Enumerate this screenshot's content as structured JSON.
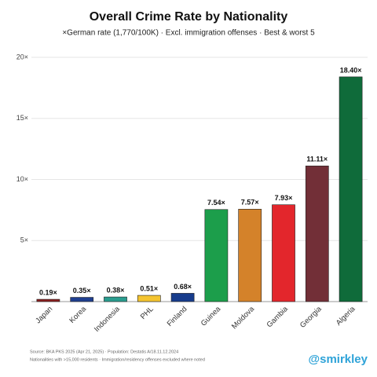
{
  "chart_data": {
    "type": "bar",
    "title": "Overall Crime Rate by Nationality",
    "subtitle": "×German rate (1,770/100K) · Excl. immigration offenses · Best & worst 5",
    "categories": [
      "Japan",
      "Korea",
      "Indonesia",
      "PHL",
      "Finland",
      "Guinea",
      "Moldova",
      "Gambia",
      "Georgia",
      "Algeria"
    ],
    "values": [
      0.19,
      0.35,
      0.38,
      0.51,
      0.68,
      7.54,
      7.57,
      7.93,
      11.11,
      18.4
    ],
    "value_labels": [
      "0.19×",
      "0.35×",
      "0.38×",
      "0.51×",
      "0.68×",
      "7.54×",
      "7.57×",
      "7.93×",
      "11.11×",
      "18.40×"
    ],
    "colors": [
      "#8b1f1f",
      "#1f3f8f",
      "#2a9d8f",
      "#f4c430",
      "#173c8c",
      "#1c9e4b",
      "#d4822a",
      "#e3262c",
      "#722f37",
      "#0f6b3a"
    ],
    "ylim": [
      0,
      20
    ],
    "yticks": [
      {
        "value": 5,
        "label": "5×"
      },
      {
        "value": 10,
        "label": "10×"
      },
      {
        "value": 15,
        "label": "15×"
      },
      {
        "value": 20,
        "label": "20×"
      }
    ],
    "grid": true,
    "source": "Source: BKA PKS 2025 (Apr 21, 2025) · Population: Destatis A/18.11.12.2024",
    "note": "Nationalities with >15,000 residents · Immigration/residency offenses excluded where noted",
    "handle": "@smirkley"
  }
}
